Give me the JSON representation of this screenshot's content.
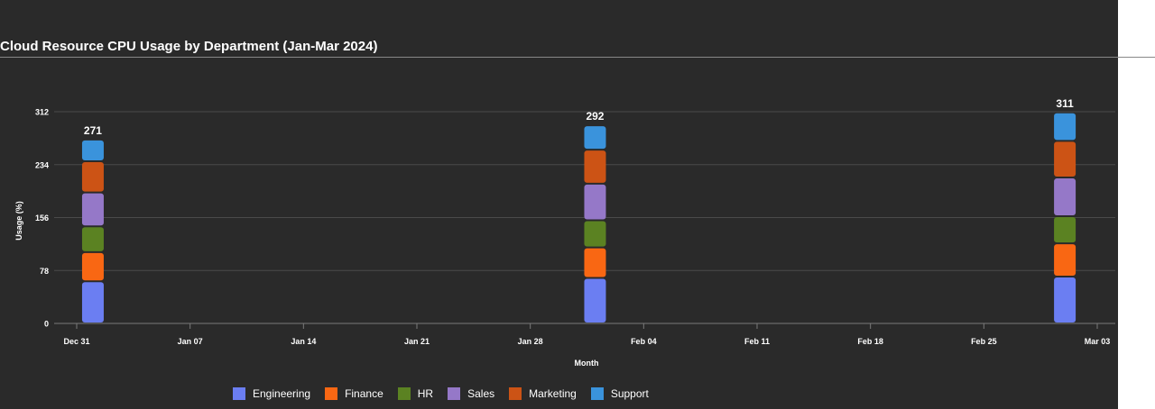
{
  "chart_data": {
    "type": "bar",
    "stacked": true,
    "title": "Cloud Resource CPU Usage by Department (Jan-Mar 2024)",
    "xlabel": "Month",
    "ylabel": "Usage (%)",
    "ylim": [
      0,
      312
    ],
    "yticks": [
      "0",
      "78",
      "156",
      "234",
      "312"
    ],
    "ytick_values": [
      0,
      78,
      156,
      234,
      312
    ],
    "xticks": [
      "Dec 31",
      "Jan 07",
      "Jan 14",
      "Jan 21",
      "Jan 28",
      "Feb 04",
      "Feb 11",
      "Feb 18",
      "Feb 25",
      "Mar 03"
    ],
    "xtick_dates": [
      "2023-12-31",
      "2024-01-07",
      "2024-01-14",
      "2024-01-21",
      "2024-01-28",
      "2024-02-04",
      "2024-02-11",
      "2024-02-18",
      "2024-02-25",
      "2024-03-03"
    ],
    "x": [
      "2024-01-01",
      "2024-02-01",
      "2024-03-01"
    ],
    "totals": [
      "271",
      "292",
      "311"
    ],
    "grid": true,
    "legend_position": "bottom",
    "series": [
      {
        "name": "Engineering",
        "color": "#6b7ef2",
        "values": [
          62,
          67,
          69
        ]
      },
      {
        "name": "Finance",
        "color": "#f96713",
        "values": [
          43,
          45,
          49
        ]
      },
      {
        "name": "HR",
        "color": "#5b8222",
        "values": [
          38,
          40,
          40
        ]
      },
      {
        "name": "Sales",
        "color": "#9578c8",
        "values": [
          50,
          54,
          57
        ]
      },
      {
        "name": "Marketing",
        "color": "#cc5315",
        "values": [
          46,
          50,
          54
        ]
      },
      {
        "name": "Support",
        "color": "#3a93dc",
        "values": [
          32,
          36,
          42
        ]
      }
    ]
  }
}
